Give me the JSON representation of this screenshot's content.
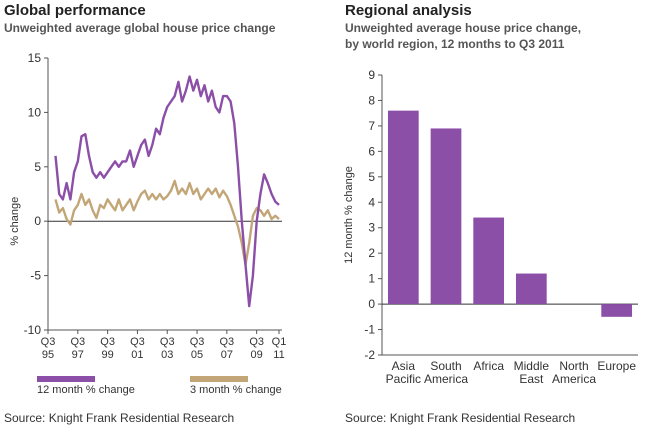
{
  "left": {
    "title": "Global performance",
    "subtitle": "Unweighted average global house price change",
    "source": "Source: Knight Frank Residential Research",
    "legend": [
      {
        "label": "12 month % change",
        "color": "#8b4fa8"
      },
      {
        "label": "3 month % change",
        "color": "#c2a677"
      }
    ]
  },
  "right": {
    "title": "Regional analysis",
    "subtitle_line1": "Unweighted average house price change,",
    "subtitle_line2": "by world region, 12 months to Q3 2011",
    "source": "Source: Knight Frank Residential Research"
  },
  "chart_data": [
    {
      "type": "line",
      "ylabel": "% change",
      "ylim": [
        -10,
        15
      ],
      "yticks": [
        -10,
        -5,
        0,
        5,
        10,
        15
      ],
      "xticks": [
        {
          "top": "Q3",
          "bottom": "95"
        },
        {
          "top": "Q3",
          "bottom": "97"
        },
        {
          "top": "Q3",
          "bottom": "99"
        },
        {
          "top": "Q3",
          "bottom": "01"
        },
        {
          "top": "Q3",
          "bottom": "03"
        },
        {
          "top": "Q3",
          "bottom": "05"
        },
        {
          "top": "Q3",
          "bottom": "07"
        },
        {
          "top": "Q3",
          "bottom": "09"
        },
        {
          "top": "Q1",
          "bottom": "11"
        }
      ],
      "x_range": [
        1995.5,
        2011.2
      ],
      "x_tick_values": [
        1995.5,
        1997.5,
        1999.5,
        2001.5,
        2003.5,
        2005.5,
        2007.5,
        2009.5,
        2011.0
      ],
      "series": [
        {
          "name": "12 month % change",
          "color": "#8b4fa8",
          "points": [
            [
              1996.0,
              6.0
            ],
            [
              1996.25,
              2.5
            ],
            [
              1996.5,
              2.0
            ],
            [
              1996.75,
              3.5
            ],
            [
              1997.0,
              2.0
            ],
            [
              1997.25,
              4.5
            ],
            [
              1997.5,
              5.5
            ],
            [
              1997.75,
              7.8
            ],
            [
              1998.0,
              8.0
            ],
            [
              1998.25,
              6.0
            ],
            [
              1998.5,
              4.5
            ],
            [
              1998.75,
              4.0
            ],
            [
              1999.0,
              4.5
            ],
            [
              1999.25,
              4.0
            ],
            [
              1999.5,
              4.5
            ],
            [
              1999.75,
              5.0
            ],
            [
              2000.0,
              5.5
            ],
            [
              2000.25,
              5.0
            ],
            [
              2000.5,
              5.5
            ],
            [
              2000.75,
              5.5
            ],
            [
              2001.0,
              6.5
            ],
            [
              2001.25,
              5.0
            ],
            [
              2001.5,
              6.0
            ],
            [
              2001.75,
              7.0
            ],
            [
              2002.0,
              7.5
            ],
            [
              2002.25,
              6.0
            ],
            [
              2002.5,
              7.0
            ],
            [
              2002.75,
              8.5
            ],
            [
              2003.0,
              8.0
            ],
            [
              2003.25,
              9.5
            ],
            [
              2003.5,
              10.5
            ],
            [
              2003.75,
              11.0
            ],
            [
              2004.0,
              11.5
            ],
            [
              2004.25,
              12.8
            ],
            [
              2004.5,
              11.0
            ],
            [
              2004.75,
              12.0
            ],
            [
              2005.0,
              13.3
            ],
            [
              2005.25,
              12.0
            ],
            [
              2005.5,
              13.0
            ],
            [
              2005.75,
              11.5
            ],
            [
              2006.0,
              12.5
            ],
            [
              2006.25,
              11.0
            ],
            [
              2006.5,
              12.0
            ],
            [
              2006.75,
              10.5
            ],
            [
              2007.0,
              10.0
            ],
            [
              2007.25,
              11.5
            ],
            [
              2007.5,
              11.5
            ],
            [
              2007.75,
              11.0
            ],
            [
              2008.0,
              9.0
            ],
            [
              2008.25,
              5.0
            ],
            [
              2008.5,
              0.0
            ],
            [
              2008.75,
              -4.0
            ],
            [
              2009.0,
              -7.8
            ],
            [
              2009.25,
              -5.0
            ],
            [
              2009.5,
              0.0
            ],
            [
              2009.75,
              2.5
            ],
            [
              2010.0,
              4.3
            ],
            [
              2010.25,
              3.5
            ],
            [
              2010.5,
              2.5
            ],
            [
              2010.75,
              1.8
            ],
            [
              2011.0,
              1.5
            ]
          ]
        },
        {
          "name": "3 month % change",
          "color": "#c2a677",
          "points": [
            [
              1996.0,
              2.0
            ],
            [
              1996.25,
              0.8
            ],
            [
              1996.5,
              1.2
            ],
            [
              1996.75,
              0.2
            ],
            [
              1997.0,
              -0.3
            ],
            [
              1997.25,
              1.0
            ],
            [
              1997.5,
              1.5
            ],
            [
              1997.75,
              2.5
            ],
            [
              1998.0,
              1.5
            ],
            [
              1998.25,
              2.0
            ],
            [
              1998.5,
              1.0
            ],
            [
              1998.75,
              0.3
            ],
            [
              1999.0,
              1.5
            ],
            [
              1999.25,
              1.2
            ],
            [
              1999.5,
              2.0
            ],
            [
              1999.75,
              1.5
            ],
            [
              2000.0,
              1.0
            ],
            [
              2000.25,
              2.0
            ],
            [
              2000.5,
              1.0
            ],
            [
              2000.75,
              1.5
            ],
            [
              2001.0,
              2.0
            ],
            [
              2001.25,
              1.0
            ],
            [
              2001.5,
              1.8
            ],
            [
              2001.75,
              2.5
            ],
            [
              2002.0,
              2.8
            ],
            [
              2002.25,
              2.0
            ],
            [
              2002.5,
              2.5
            ],
            [
              2002.75,
              2.0
            ],
            [
              2003.0,
              2.5
            ],
            [
              2003.25,
              2.0
            ],
            [
              2003.5,
              2.3
            ],
            [
              2003.75,
              2.8
            ],
            [
              2004.0,
              3.7
            ],
            [
              2004.25,
              2.5
            ],
            [
              2004.5,
              3.0
            ],
            [
              2004.75,
              2.5
            ],
            [
              2005.0,
              3.5
            ],
            [
              2005.25,
              2.5
            ],
            [
              2005.5,
              3.0
            ],
            [
              2005.75,
              2.0
            ],
            [
              2006.0,
              2.5
            ],
            [
              2006.25,
              3.0
            ],
            [
              2006.5,
              2.5
            ],
            [
              2006.75,
              3.0
            ],
            [
              2007.0,
              2.2
            ],
            [
              2007.25,
              2.8
            ],
            [
              2007.5,
              2.3
            ],
            [
              2007.75,
              1.5
            ],
            [
              2008.0,
              0.5
            ],
            [
              2008.25,
              -0.5
            ],
            [
              2008.5,
              -2.0
            ],
            [
              2008.75,
              -4.0
            ],
            [
              2009.0,
              -2.0
            ],
            [
              2009.25,
              0.5
            ],
            [
              2009.5,
              1.2
            ],
            [
              2009.75,
              1.0
            ],
            [
              2010.0,
              0.5
            ],
            [
              2010.25,
              1.0
            ],
            [
              2010.5,
              0.2
            ],
            [
              2010.75,
              0.5
            ],
            [
              2011.0,
              0.2
            ]
          ]
        }
      ]
    },
    {
      "type": "bar",
      "ylabel": "12 month % change",
      "ylim": [
        -2,
        9
      ],
      "yticks": [
        -2,
        -1,
        0,
        1,
        2,
        3,
        4,
        5,
        6,
        7,
        8,
        9
      ],
      "bar_color": "#8b4fa8",
      "categories": [
        {
          "line1": "Asia",
          "line2": "Pacific"
        },
        {
          "line1": "South",
          "line2": "America"
        },
        {
          "line1": "Africa",
          "line2": ""
        },
        {
          "line1": "Middle",
          "line2": "East"
        },
        {
          "line1": "North",
          "line2": "America"
        },
        {
          "line1": "Europe",
          "line2": ""
        }
      ],
      "values": [
        7.6,
        6.9,
        3.4,
        1.2,
        0.0,
        -0.5
      ]
    }
  ]
}
